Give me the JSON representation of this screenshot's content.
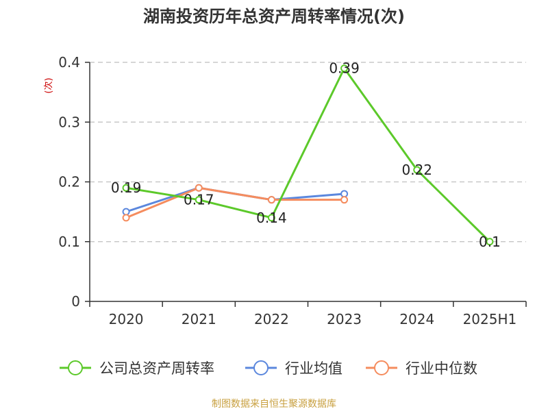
{
  "chart_data": {
    "type": "line",
    "title": "湖南投资历年总资产周转率情况(次)",
    "ylabel": "(次)",
    "xlabel": "",
    "categories": [
      "2020",
      "2021",
      "2022",
      "2023",
      "2024",
      "2025H1"
    ],
    "ylim": [
      0,
      0.4
    ],
    "yticks": [
      0,
      0.1,
      0.2,
      0.3,
      0.4
    ],
    "ytick_labels": [
      "0",
      "0.1",
      "0.2",
      "0.3",
      "0.4"
    ],
    "grid": true,
    "legend_position": "bottom",
    "series": [
      {
        "name": "公司总资产周转率",
        "color": "#5cc92a",
        "values": [
          0.19,
          0.17,
          0.14,
          0.39,
          0.22,
          0.1
        ],
        "labels": [
          "0.19",
          "0.17",
          "0.14",
          "0.39",
          "0.22",
          "0.1"
        ]
      },
      {
        "name": "行业均值",
        "color": "#5b87dd",
        "values": [
          0.15,
          0.19,
          0.17,
          0.18,
          null,
          null
        ]
      },
      {
        "name": "行业中位数",
        "color": "#f58c5e",
        "values": [
          0.14,
          0.19,
          0.17,
          0.17,
          null,
          null
        ]
      }
    ]
  },
  "source": "制图数据来自恒生聚源数据库"
}
